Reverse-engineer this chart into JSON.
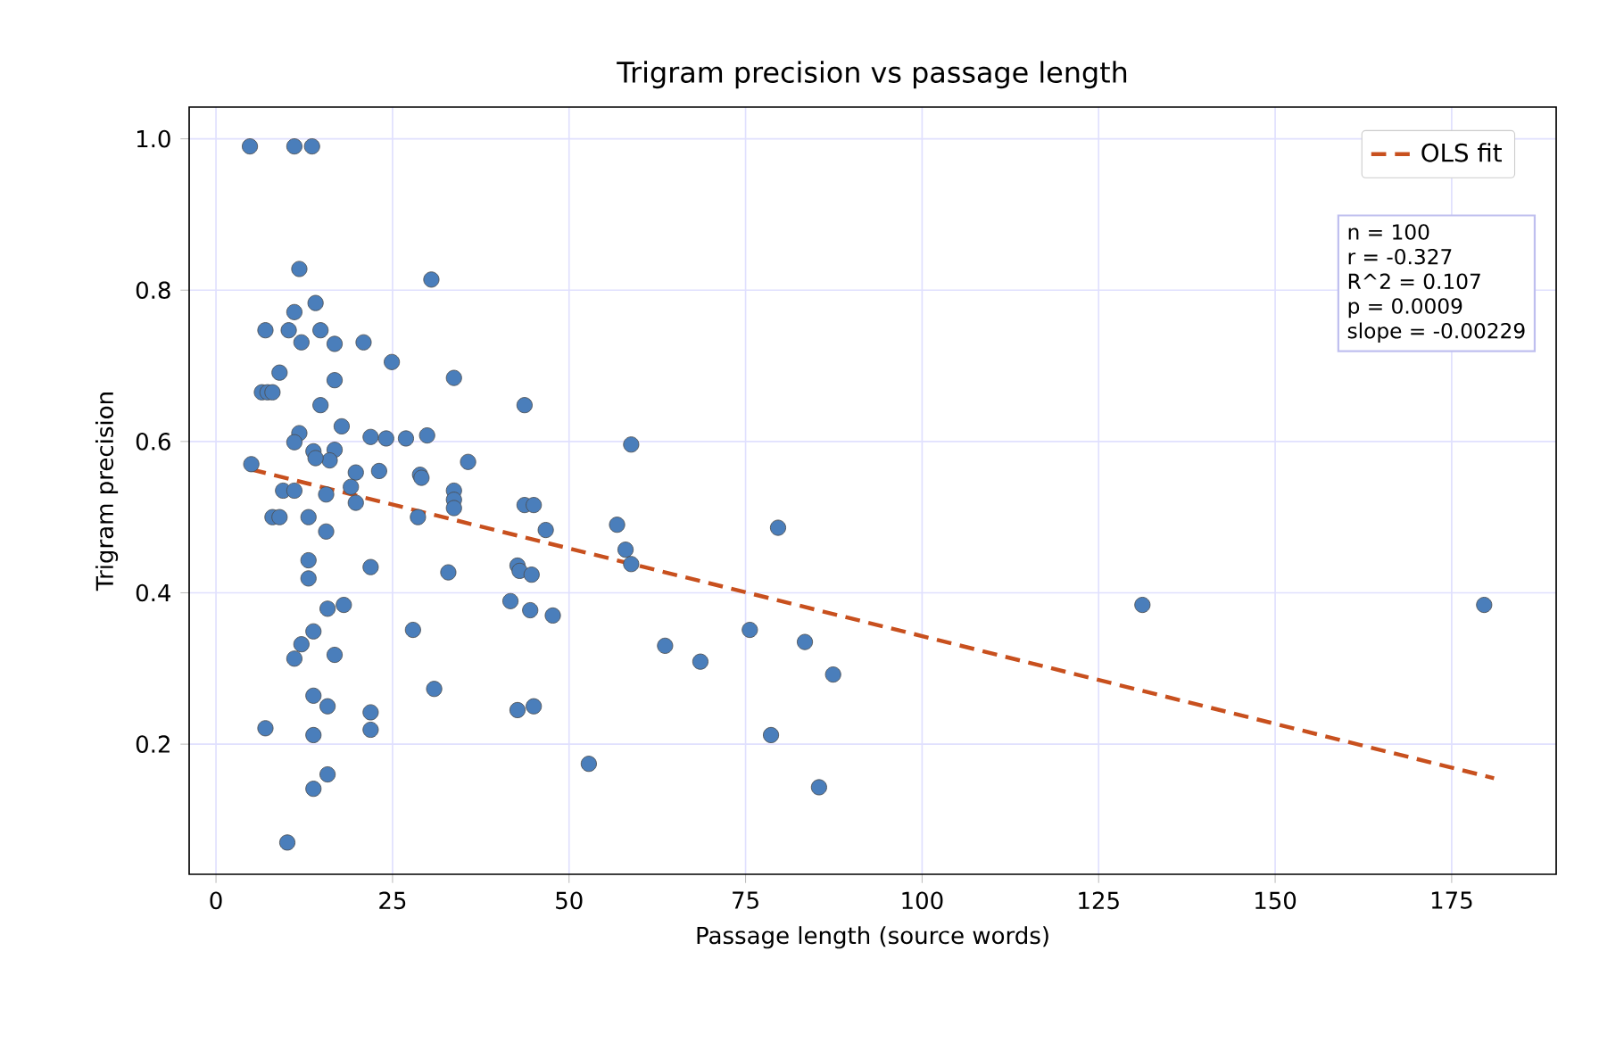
{
  "chart_data": {
    "type": "scatter",
    "title": "Trigram precision vs passage length",
    "xlabel": "Passage length (source words)",
    "ylabel": "Trigram precision",
    "xlim": [
      -3.8,
      189.8
    ],
    "ylim": [
      0.028,
      1.042
    ],
    "xticks": [
      0,
      25,
      50,
      75,
      100,
      125,
      150,
      175
    ],
    "yticks": [
      0.2,
      0.4,
      0.6,
      0.8,
      {
        "value": 1.0,
        "label": "1.0"
      }
    ],
    "grid": true,
    "legend": "top right",
    "marker": "circle",
    "annotations": [
      "n = 100",
      "r = -0.327",
      "R^2 = 0.107",
      "p = 0.0009",
      "slope = -0.00229"
    ],
    "series": [
      {
        "color": "#4a7ebb",
        "x": [
          4.8,
          11.1,
          13.6,
          11.8,
          30.5,
          14.1,
          11.1,
          7.0,
          10.3,
          14.8,
          12.1,
          16.8,
          20.9,
          24.9,
          9.0,
          33.7,
          16.8,
          6.5,
          7.3,
          8.0,
          14.8,
          43.7,
          17.8,
          11.8,
          11.1,
          21.9,
          24.1,
          26.9,
          29.9,
          16.8,
          13.8,
          16.1,
          14.1,
          5.0,
          35.7,
          19.8,
          23.1,
          28.9,
          29.1,
          33.7,
          33.7,
          33.7,
          43.7,
          45.0,
          9.5,
          11.1,
          19.1,
          15.6,
          19.8,
          8.0,
          9.0,
          13.1,
          15.6,
          28.6,
          13.1,
          21.9,
          32.9,
          13.1,
          42.7,
          43.0,
          41.7,
          44.5,
          15.8,
          18.1,
          13.8,
          12.1,
          11.1,
          16.8,
          27.9,
          30.9,
          13.8,
          15.8,
          21.9,
          21.9,
          7.0,
          13.8,
          42.7,
          45.0,
          15.8,
          13.8,
          10.1,
          58.8,
          46.7,
          56.8,
          79.6,
          58.0,
          58.8,
          44.7,
          47.7,
          63.6,
          68.6,
          75.6,
          83.4,
          87.4,
          78.6,
          52.8,
          85.4,
          131.2,
          179.6
        ],
        "values": [
          0.99,
          0.99,
          0.99,
          0.828,
          0.814,
          0.783,
          0.771,
          0.747,
          0.747,
          0.747,
          0.731,
          0.729,
          0.731,
          0.705,
          0.691,
          0.684,
          0.681,
          0.665,
          0.665,
          0.665,
          0.648,
          0.648,
          0.62,
          0.611,
          0.599,
          0.606,
          0.604,
          0.604,
          0.608,
          0.589,
          0.587,
          0.575,
          0.578,
          0.57,
          0.573,
          0.559,
          0.561,
          0.556,
          0.552,
          0.535,
          0.523,
          0.512,
          0.516,
          0.516,
          0.535,
          0.535,
          0.54,
          0.53,
          0.519,
          0.5,
          0.5,
          0.5,
          0.481,
          0.5,
          0.443,
          0.434,
          0.427,
          0.419,
          0.436,
          0.429,
          0.389,
          0.377,
          0.379,
          0.384,
          0.349,
          0.332,
          0.313,
          0.318,
          0.351,
          0.273,
          0.264,
          0.25,
          0.242,
          0.219,
          0.221,
          0.212,
          0.245,
          0.25,
          0.16,
          0.141,
          0.07,
          0.596,
          0.483,
          0.49,
          0.486,
          0.457,
          0.438,
          0.424,
          0.37,
          0.33,
          0.309,
          0.351,
          0.335,
          0.292,
          0.212,
          0.174,
          0.143,
          0.384,
          0.384
        ]
      },
      {
        "type": "line",
        "name": "OLS fit",
        "color": "#c8501e",
        "line_style": "dashed",
        "marker": "none",
        "x": [
          5,
          181
        ],
        "values": [
          0.563,
          0.155
        ]
      }
    ]
  }
}
